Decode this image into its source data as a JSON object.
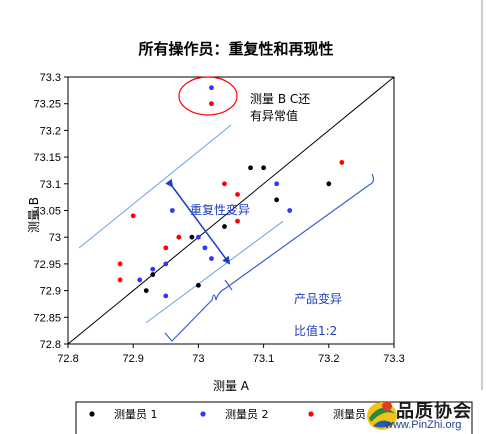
{
  "chart_data": {
    "type": "scatter",
    "title": "所有操作员：重复性和再现性",
    "xlabel": "测量 A",
    "ylabel": "测量 B",
    "xlim": [
      72.8,
      73.3
    ],
    "ylim": [
      72.8,
      73.3
    ],
    "xticks": [
      "72.8",
      "72.9",
      "73",
      "73.1",
      "73.2",
      "73.3"
    ],
    "yticks": [
      "72.8",
      "72.85",
      "72.9",
      "72.95",
      "73",
      "73.05",
      "73.1",
      "73.15",
      "73.2",
      "73.25",
      "73.3"
    ],
    "grid": false,
    "legend_position": "bottom",
    "series": [
      {
        "name": "测量员 1",
        "color": "#000000",
        "points": [
          [
            72.92,
            72.9
          ],
          [
            72.93,
            72.93
          ],
          [
            72.99,
            73.0
          ],
          [
            73.0,
            72.91
          ],
          [
            73.04,
            73.02
          ],
          [
            73.08,
            73.13
          ],
          [
            73.1,
            73.13
          ],
          [
            73.12,
            73.07
          ],
          [
            73.2,
            73.1
          ]
        ]
      },
      {
        "name": "测量员 2",
        "color": "#3333ff",
        "points": [
          [
            72.91,
            72.92
          ],
          [
            72.93,
            72.94
          ],
          [
            72.95,
            72.89
          ],
          [
            72.95,
            72.95
          ],
          [
            72.96,
            73.05
          ],
          [
            73.0,
            73.0
          ],
          [
            73.01,
            72.98
          ],
          [
            73.02,
            72.96
          ],
          [
            73.02,
            73.28
          ],
          [
            73.12,
            73.1
          ],
          [
            73.14,
            73.05
          ]
        ]
      },
      {
        "name": "测量员 3",
        "color": "#ff0000",
        "points": [
          [
            72.88,
            72.95
          ],
          [
            72.88,
            72.92
          ],
          [
            72.9,
            73.04
          ],
          [
            72.95,
            72.98
          ],
          [
            72.97,
            73.0
          ],
          [
            73.02,
            73.25
          ],
          [
            73.04,
            73.1
          ],
          [
            73.06,
            73.08
          ],
          [
            73.06,
            73.03
          ],
          [
            73.22,
            73.14
          ]
        ]
      }
    ],
    "annotations": {
      "outlier_label": [
        "测量 B C还",
        "有异常值"
      ],
      "repeatability_label": "重复性变异",
      "product_variation_label": "产品变异",
      "ratio_label": "比值1:2"
    }
  },
  "watermark": {
    "title": "品质协会",
    "url": "www.PinZhi.org"
  }
}
